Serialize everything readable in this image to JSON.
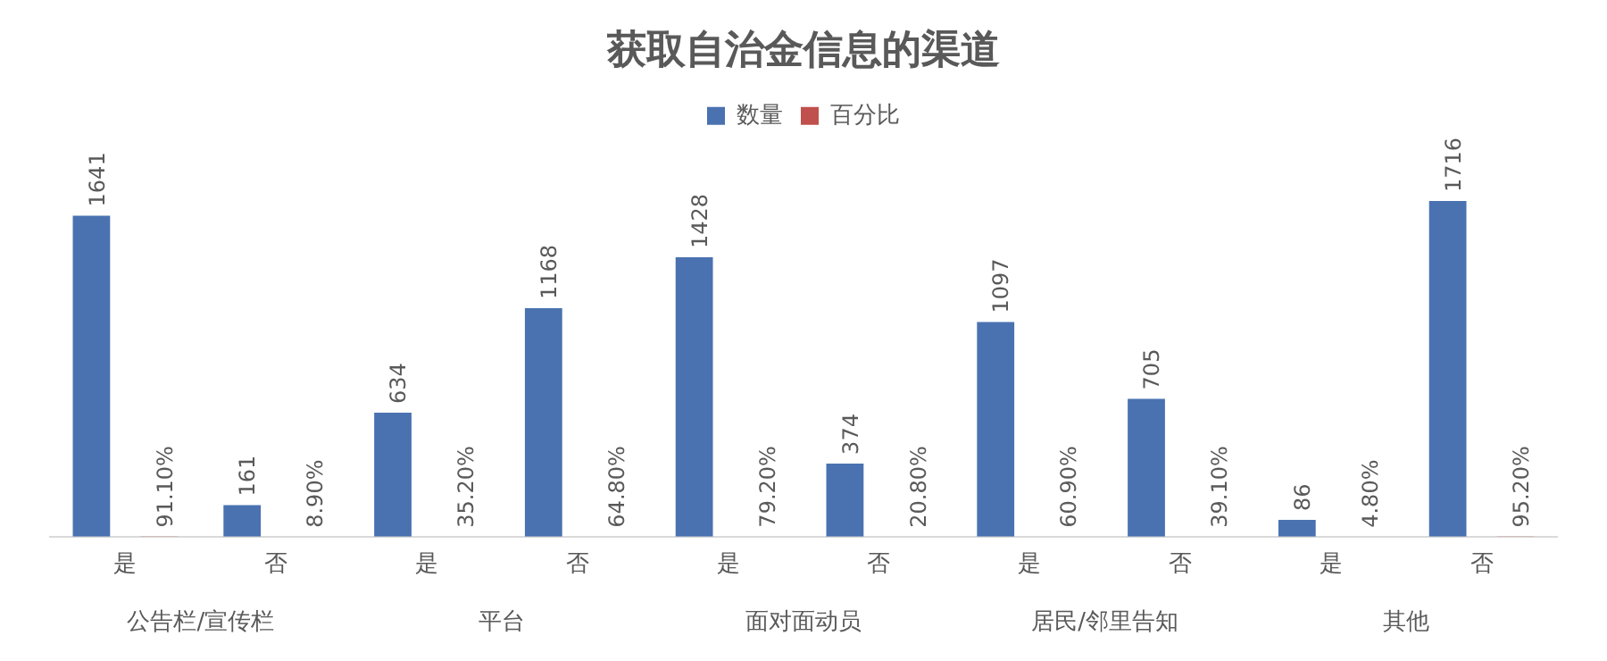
{
  "chart_data": {
    "type": "bar",
    "title": "获取自治金信息的渠道",
    "categories": [
      "是",
      "否",
      "是",
      "否",
      "是",
      "否",
      "是",
      "否",
      "是",
      "否"
    ],
    "series": [
      {
        "name": "数量",
        "color": "#4a72b0",
        "values": [
          1641,
          161,
          634,
          1168,
          1428,
          374,
          1097,
          705,
          86,
          1716
        ]
      },
      {
        "name": "百分比",
        "color": "#c0504d",
        "values": [
          0.911,
          0.089,
          0.352,
          0.648,
          0.792,
          0.208,
          0.609,
          0.391,
          0.048,
          0.952
        ],
        "value_labels": [
          "91.10%",
          "8.90%",
          "35.20%",
          "64.80%",
          "79.20%",
          "20.80%",
          "60.90%",
          "39.10%",
          "4.80%",
          "95.20%"
        ]
      }
    ],
    "annotations": [
      "公告栏/宣传栏",
      "平台",
      "面对面动员",
      "居民/邻里告知",
      "其他"
    ],
    "data_labels": true,
    "legend": "top",
    "grid": false,
    "tick_labels": "x"
  }
}
